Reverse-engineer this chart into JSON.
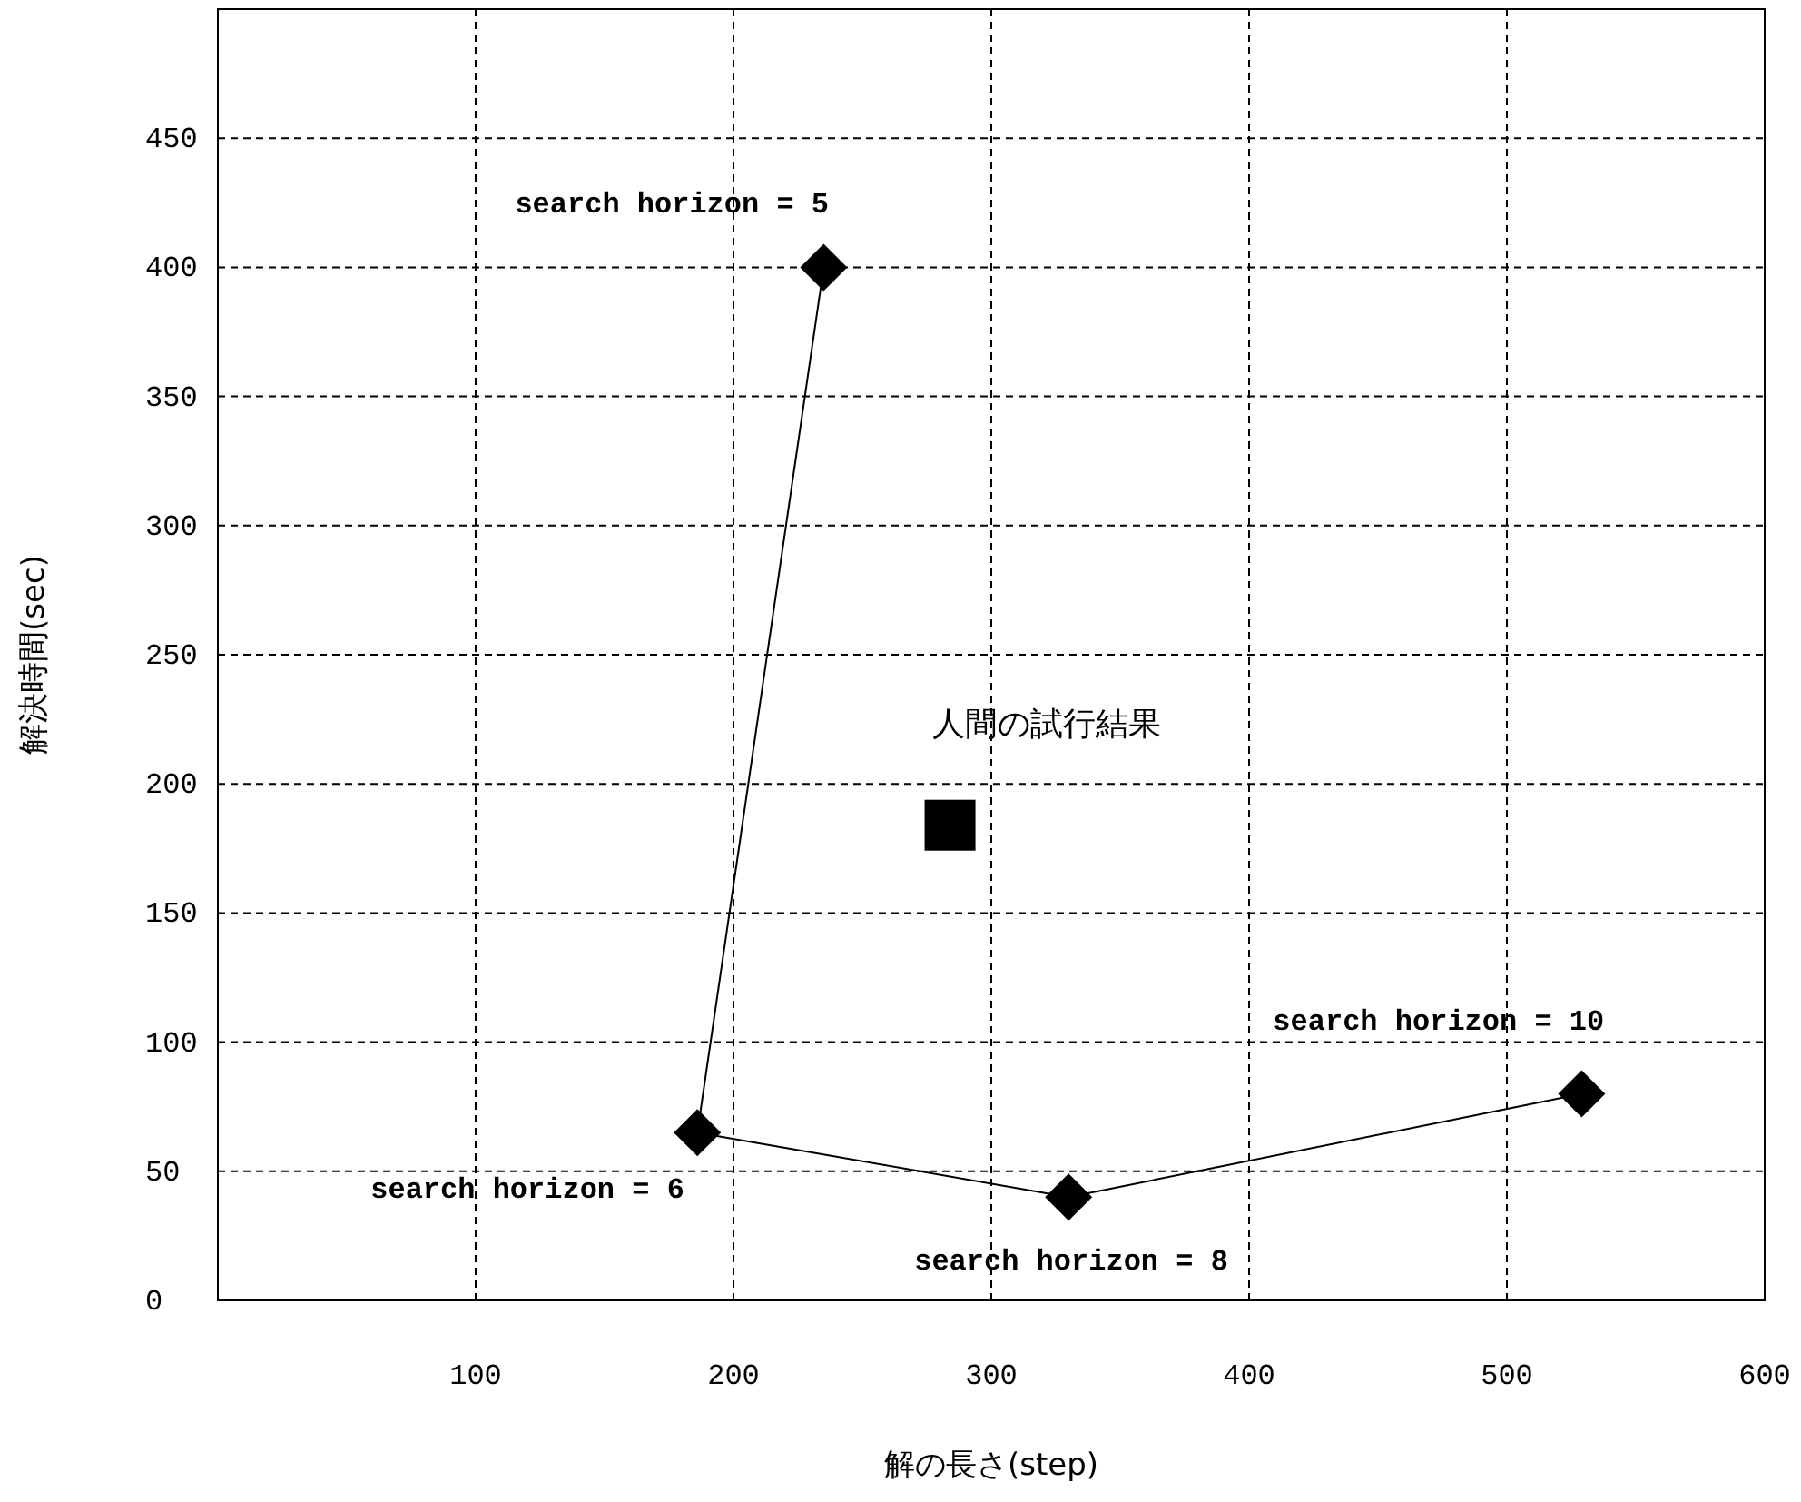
{
  "chart_data": {
    "type": "line",
    "xlabel": "解の長さ(step)",
    "ylabel": "解決時間(sec)",
    "xlim": [
      0,
      600
    ],
    "ylim": [
      0,
      500
    ],
    "xticks": [
      100,
      200,
      300,
      400,
      500,
      600
    ],
    "yticks": [
      0,
      50,
      100,
      150,
      200,
      250,
      300,
      350,
      400,
      450
    ],
    "grid": true,
    "line_style": "solid",
    "series": [
      {
        "color": "#000000",
        "marker": "diamond",
        "x": [
          235,
          186,
          330,
          529
        ],
        "values": [
          400,
          65,
          40,
          80
        ]
      },
      {
        "type": "scatter",
        "color": "#000000",
        "marker": "square",
        "x": [
          284
        ],
        "values": [
          184
        ]
      }
    ],
    "annotations": [
      {
        "text": "search horizon = 5",
        "x": 235,
        "y": 400
      },
      {
        "text": "search horizon = 6",
        "x": 186,
        "y": 65
      },
      {
        "text": "search horizon = 8",
        "x": 330,
        "y": 40
      },
      {
        "text": "search horizon = 10",
        "x": 529,
        "y": 80
      },
      {
        "text": "人間の試行結果",
        "x": 284,
        "y": 184
      }
    ]
  }
}
